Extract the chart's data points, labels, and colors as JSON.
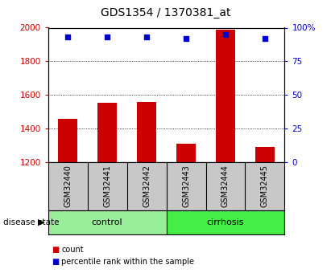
{
  "title": "GDS1354 / 1370381_at",
  "samples": [
    "GSM32440",
    "GSM32441",
    "GSM32442",
    "GSM32443",
    "GSM32444",
    "GSM32445"
  ],
  "counts": [
    1455,
    1555,
    1560,
    1310,
    1990,
    1290
  ],
  "percentile_ranks": [
    93,
    93,
    93,
    92,
    95,
    92
  ],
  "ylim_left": [
    1200,
    2000
  ],
  "ylim_right": [
    0,
    100
  ],
  "yticks_left": [
    1200,
    1400,
    1600,
    1800,
    2000
  ],
  "yticks_right": [
    0,
    25,
    50,
    75,
    100
  ],
  "bar_color": "#cc0000",
  "dot_color": "#0000cc",
  "bar_width": 0.5,
  "groups": [
    {
      "label": "control",
      "indices": [
        0,
        1,
        2
      ],
      "color": "#99ee99"
    },
    {
      "label": "cirrhosis",
      "indices": [
        3,
        4,
        5
      ],
      "color": "#44ee44"
    }
  ],
  "disease_state_label": "disease state",
  "legend_count_label": "count",
  "legend_pct_label": "percentile rank within the sample",
  "legend_count_color": "#cc0000",
  "legend_pct_color": "#0000cc",
  "grid_color": "black",
  "ylabel_left_color": "#cc0000",
  "ylabel_right_color": "#0000cc",
  "background_color": "#ffffff",
  "xlabel_area_color": "#c8c8c8",
  "title_fontsize": 10,
  "tick_fontsize": 7.5,
  "label_fontsize": 7,
  "group_fontsize": 8
}
